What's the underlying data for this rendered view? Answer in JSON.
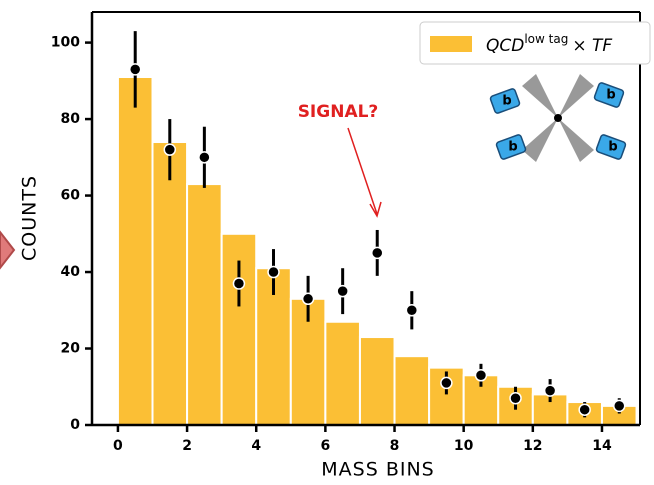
{
  "chart_data": {
    "type": "histogram",
    "xlabel": "MASS BINS",
    "ylabel": "COUNTS",
    "annotation": "SIGNAL?",
    "xlim": [
      -0.75,
      15.1
    ],
    "ylim": [
      0,
      108
    ],
    "xticks": [
      0,
      2,
      4,
      6,
      8,
      10,
      12,
      14
    ],
    "yticks": [
      0,
      20,
      40,
      60,
      80,
      100
    ],
    "legend_position": "upper right",
    "series": [
      {
        "name": [
          "QCD",
          "low tag",
          "× TF"
        ],
        "type": "histogram",
        "color": "#fbbf35",
        "bins": [
          0,
          1,
          2,
          3,
          4,
          5,
          6,
          7,
          8,
          9,
          10,
          11,
          12,
          13,
          14,
          15
        ],
        "values": [
          91,
          74,
          63,
          50,
          41,
          33,
          27,
          23,
          18,
          15,
          13,
          10,
          8,
          6,
          5
        ]
      },
      {
        "type": "errorbar",
        "color": "#000000",
        "x": [
          0.5,
          1.5,
          2.5,
          3.5,
          4.5,
          5.5,
          6.5,
          7.5,
          8.5,
          9.5,
          10.5,
          11.5,
          12.5,
          13.5,
          14.5
        ],
        "values": [
          93,
          72,
          70,
          37,
          40,
          33,
          35,
          45,
          30,
          11,
          13,
          7,
          9,
          4,
          5
        ],
        "errors": [
          10,
          8,
          8,
          6,
          6,
          6,
          6,
          6,
          5,
          3,
          3,
          3,
          3,
          2,
          2
        ]
      }
    ],
    "icon_label": "b"
  }
}
